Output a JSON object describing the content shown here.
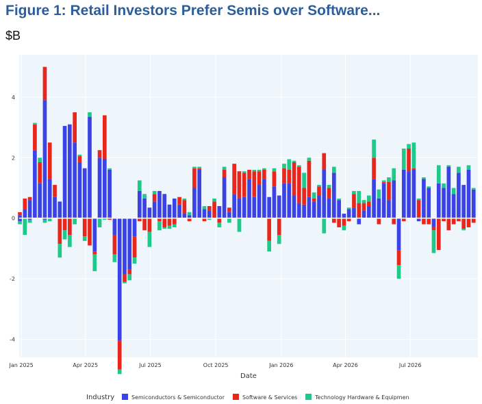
{
  "header": {
    "title": "Figure 1: Retail Investors Prefer Semis over Software...",
    "unit": "$B"
  },
  "chart_data": {
    "type": "bar",
    "stacking": "relative",
    "xlabel": "Date",
    "ylabel": "",
    "ylim": [
      -4.6,
      5.4
    ],
    "y_ticks": [
      -4,
      -2,
      0,
      2,
      4
    ],
    "x_ticks": [
      {
        "date": "2025-01-01",
        "label": "Jan 2025"
      },
      {
        "date": "2025-04-01",
        "label": "Apr 2025"
      },
      {
        "date": "2025-07-01",
        "label": "Jul 2025"
      },
      {
        "date": "2025-10-01",
        "label": "Oct 2025"
      },
      {
        "date": "2026-01-01",
        "label": "Jan 2026"
      },
      {
        "date": "2026-04-01",
        "label": "Apr 2026"
      },
      {
        "date": "2026-07-01",
        "label": "Jul 2026"
      }
    ],
    "x_range": [
      "2024-12-29",
      "2026-10-04"
    ],
    "grid": true,
    "legend": {
      "title": "Industry",
      "position": "bottom"
    },
    "colors": {
      "plot_bg": "#eef6fc",
      "grid": "#ffffff"
    },
    "x": [
      "2024-12-30",
      "2025-01-06",
      "2025-01-13",
      "2025-01-20",
      "2025-01-27",
      "2025-02-03",
      "2025-02-10",
      "2025-02-17",
      "2025-02-24",
      "2025-03-03",
      "2025-03-10",
      "2025-03-17",
      "2025-03-24",
      "2025-03-31",
      "2025-04-07",
      "2025-04-14",
      "2025-04-21",
      "2025-04-28",
      "2025-05-05",
      "2025-05-12",
      "2025-05-19",
      "2025-05-26",
      "2025-06-02",
      "2025-06-09",
      "2025-06-16",
      "2025-06-23",
      "2025-06-30",
      "2025-07-07",
      "2025-07-14",
      "2025-07-21",
      "2025-07-28",
      "2025-08-04",
      "2025-08-11",
      "2025-08-18",
      "2025-08-25",
      "2025-09-01",
      "2025-09-08",
      "2025-09-15",
      "2025-09-22",
      "2025-09-29",
      "2025-10-06",
      "2025-10-13",
      "2025-10-20",
      "2025-10-27",
      "2025-11-03",
      "2025-11-10",
      "2025-11-17",
      "2025-11-24",
      "2025-12-01",
      "2025-12-08",
      "2025-12-15",
      "2025-12-22",
      "2025-12-29",
      "2026-01-05",
      "2026-01-12",
      "2026-01-19",
      "2026-01-26",
      "2026-02-02",
      "2026-02-09",
      "2026-02-16",
      "2026-02-23",
      "2026-03-02",
      "2026-03-09",
      "2026-03-16",
      "2026-03-23",
      "2026-03-30",
      "2026-04-06",
      "2026-04-13",
      "2026-04-20",
      "2026-04-27",
      "2026-05-04",
      "2026-05-11",
      "2026-05-18",
      "2026-05-25",
      "2026-06-01",
      "2026-06-08",
      "2026-06-15",
      "2026-06-22",
      "2026-06-29",
      "2026-07-06",
      "2026-07-13",
      "2026-07-20",
      "2026-07-27",
      "2026-08-03",
      "2026-08-10",
      "2026-08-17",
      "2026-08-24",
      "2026-08-31",
      "2026-09-07",
      "2026-09-14",
      "2026-09-21",
      "2026-09-28"
    ],
    "series": [
      {
        "name": "Semiconductors & Semiconductor",
        "color": "#3b43e6",
        "values": [
          0.1,
          0.3,
          0.6,
          2.25,
          1.15,
          3.9,
          1.3,
          0.7,
          0.55,
          3.05,
          3.1,
          2.5,
          1.85,
          1.65,
          3.35,
          -1.1,
          2.0,
          1.95,
          1.6,
          -0.55,
          -4.05,
          -1.85,
          -1.7,
          -0.6,
          0.9,
          0.65,
          0.35,
          0.55,
          0.9,
          0.8,
          0.45,
          0.65,
          0.45,
          0.15,
          0.1,
          1.0,
          1.6,
          0.3,
          0.25,
          0.0,
          0.4,
          1.35,
          0.2,
          0.8,
          0.65,
          0.7,
          1.3,
          0.7,
          1.1,
          1.3,
          0.7,
          1.05,
          0.75,
          1.15,
          1.15,
          0.75,
          0.5,
          0.45,
          0.7,
          0.55,
          0.75,
          1.6,
          0.65,
          1.5,
          0.6,
          0.15,
          0.3,
          0.35,
          -0.2,
          0.25,
          0.4,
          1.3,
          0.65,
          1.15,
          0.6,
          1.25,
          -1.05,
          1.6,
          1.55,
          1.6,
          -0.1,
          1.3,
          1.0,
          -0.3,
          1.15,
          1.0,
          1.7,
          0.8,
          1.5,
          1.1,
          1.6,
          0.95
        ],
        "neg": [
          -0.1,
          0,
          -0.05,
          0,
          0,
          -0.05,
          0,
          0,
          0,
          0,
          0,
          0,
          0,
          0,
          0,
          0,
          0,
          0,
          0,
          0,
          0,
          0,
          0,
          0,
          0,
          0,
          0,
          0,
          0,
          0,
          0,
          0,
          0,
          0,
          0,
          0,
          0,
          0,
          0,
          0,
          0,
          0,
          0,
          0,
          0,
          0,
          0,
          0,
          0,
          0,
          0,
          0,
          0,
          0,
          0,
          0,
          0,
          0,
          0,
          0,
          0,
          0,
          0,
          0,
          0,
          0,
          0,
          0,
          0,
          0,
          0,
          0,
          0,
          0,
          0,
          0,
          0,
          0,
          0,
          0,
          0,
          0,
          0,
          0,
          0,
          0,
          0,
          0,
          0,
          0,
          0,
          0
        ]
      },
      {
        "name": "Software & Services",
        "color": "#e8261c",
        "values": [
          0.1,
          0.35,
          0.1,
          0.85,
          0.7,
          1.1,
          1.2,
          0.4,
          -0.85,
          -0.4,
          -0.55,
          1.0,
          0.2,
          -0.6,
          -0.9,
          -0.1,
          0.25,
          1.45,
          -0.05,
          -0.65,
          -0.95,
          -0.25,
          -0.15,
          -0.7,
          -0.1,
          -0.4,
          -0.45,
          0.25,
          -0.1,
          -0.3,
          -0.25,
          -0.2,
          0.25,
          0.45,
          -0.1,
          0.65,
          0.05,
          -0.1,
          0.15,
          0.55,
          -0.15,
          0.25,
          0.15,
          1.0,
          0.9,
          0.8,
          0.3,
          0.85,
          0.45,
          0.3,
          -0.75,
          0.5,
          -0.55,
          0.5,
          0.45,
          1.1,
          1.2,
          0.55,
          1.2,
          0.1,
          0.3,
          0.55,
          0.35,
          -0.15,
          -0.3,
          -0.25,
          -0.1,
          0.45,
          0.5,
          0.25,
          0.15,
          0.7,
          -0.2,
          0.05,
          0.6,
          -0.2,
          -0.5,
          -0.1,
          0.75,
          0.05,
          0.6,
          -0.2,
          -0.2,
          -0.1,
          -1.05,
          -0.1,
          -0.4,
          -0.2,
          -0.1,
          -0.35,
          -0.3,
          -0.15
        ]
      },
      {
        "name": "Technology Hardware & Equipmen",
        "color": "#1fc98a",
        "values": [
          -0.1,
          -0.55,
          -0.1,
          0.05,
          0.15,
          -0.1,
          -0.1,
          0.0,
          -0.45,
          -0.3,
          -0.4,
          -0.2,
          0.05,
          -0.15,
          0.15,
          -0.55,
          -0.3,
          -0.05,
          0.05,
          -0.25,
          -0.15,
          -0.05,
          -0.2,
          -0.2,
          0.35,
          0.15,
          -0.5,
          0.1,
          -0.3,
          -0.05,
          -0.1,
          -0.1,
          0.0,
          0.05,
          0.1,
          0.05,
          0.05,
          0.1,
          -0.05,
          0.1,
          -0.15,
          0.1,
          -0.15,
          0.0,
          -0.45,
          0.05,
          0.0,
          0.05,
          0.05,
          0.05,
          -0.35,
          0.1,
          -0.3,
          0.15,
          0.35,
          0.05,
          0.05,
          0.5,
          0.1,
          0.2,
          0.05,
          -0.5,
          0.1,
          0.2,
          0.05,
          -0.15,
          0.05,
          0.1,
          0.4,
          0.1,
          0.2,
          0.6,
          0.3,
          0.05,
          0.15,
          0.4,
          -0.45,
          0.7,
          0.15,
          0.85,
          0.05,
          0.05,
          0.05,
          -0.75,
          0.6,
          0.15,
          0.05,
          0.2,
          0.2,
          -0.05,
          0.15,
          0.05
        ]
      }
    ]
  }
}
